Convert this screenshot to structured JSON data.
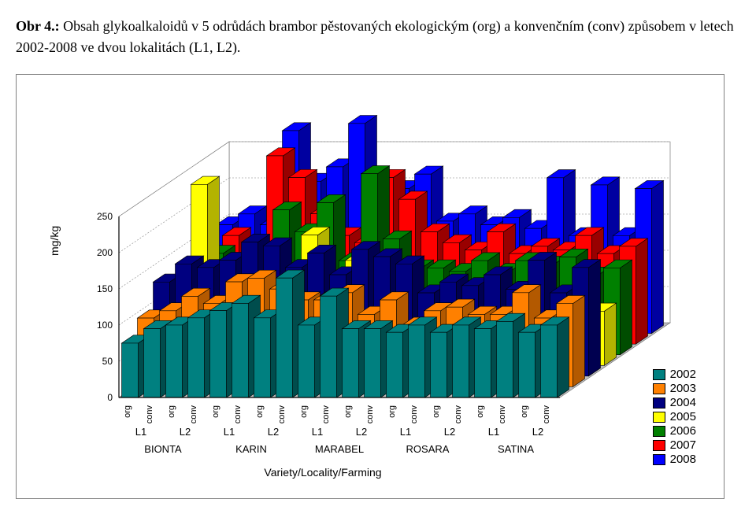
{
  "title_prefix": "Obr 4.:",
  "title_rest": " Obsah glykoalkaloidů v 5 odrůdách brambor pěstovaných ekologickým (org) a konvenčním (conv) způsobem v letech 2002-2008 ve dvou lokalitách (L1, L2).",
  "chart": {
    "type": "3d-bar",
    "ylabel": "mg/kg",
    "xlabel": "Variety/Locality/Farming",
    "ylim": [
      0,
      250
    ],
    "ytick_step": 50,
    "yticks": [
      0,
      50,
      100,
      150,
      200,
      250
    ],
    "background_color": "#ffffff",
    "floor_color": "#c0c0c0",
    "wall_color": "#ffffff",
    "grid_color": "#808080",
    "grid_dash": "2,2",
    "series_years": [
      "2002",
      "2003",
      "2004",
      "2005",
      "2006",
      "2007",
      "2008"
    ],
    "series_colors": {
      "2002": "#008080",
      "2003": "#ff8000",
      "2004": "#000080",
      "2005": "#ffff00",
      "2006": "#008000",
      "2007": "#ff0000",
      "2008": "#0000ff"
    },
    "series_dark": {
      "2002": "#004d4d",
      "2003": "#b35900",
      "2004": "#000050",
      "2005": "#b3b300",
      "2006": "#004d00",
      "2007": "#990000",
      "2008": "#0000a0"
    },
    "varieties": [
      "BIONTA",
      "KARIN",
      "MARABEL",
      "ROSARA",
      "SATINA"
    ],
    "localities": [
      "L1",
      "L2"
    ],
    "farming": [
      "org",
      "conv"
    ],
    "categories": [
      "BIONTA-L1-org",
      "BIONTA-L1-conv",
      "BIONTA-L2-org",
      "BIONTA-L2-conv",
      "KARIN-L1-org",
      "KARIN-L1-conv",
      "KARIN-L2-org",
      "KARIN-L2-conv",
      "MARABEL-L1-org",
      "MARABEL-L1-conv",
      "MARABEL-L2-org",
      "MARABEL-L2-conv",
      "ROSARA-L1-org",
      "ROSARA-L1-conv",
      "ROSARA-L2-org",
      "ROSARA-L2-conv",
      "SATINA-L1-org",
      "SATINA-L1-conv",
      "SATINA-L2-org",
      "SATINA-L2-conv"
    ],
    "values": {
      "2002": [
        75,
        95,
        100,
        110,
        120,
        130,
        110,
        165,
        100,
        140,
        95,
        95,
        90,
        100,
        90,
        100,
        95,
        105,
        90,
        100
      ],
      "2003": [
        95,
        105,
        125,
        115,
        145,
        150,
        135,
        120,
        120,
        130,
        100,
        120,
        85,
        105,
        110,
        100,
        100,
        130,
        95,
        115
      ],
      "2004": [
        130,
        155,
        150,
        160,
        185,
        180,
        150,
        170,
        140,
        175,
        165,
        155,
        115,
        130,
        125,
        140,
        120,
        160,
        115,
        150
      ],
      "2005": [
        90,
        250,
        135,
        130,
        150,
        130,
        180,
        120,
        145,
        120,
        90,
        65,
        70,
        50,
        80,
        55,
        100,
        90,
        70,
        75
      ],
      "2006": [
        95,
        140,
        130,
        135,
        200,
        170,
        210,
        130,
        250,
        160,
        120,
        120,
        115,
        130,
        115,
        130,
        125,
        135,
        110,
        120
      ],
      "2007": [
        120,
        150,
        135,
        260,
        230,
        180,
        150,
        140,
        230,
        200,
        155,
        140,
        130,
        155,
        125,
        135,
        130,
        150,
        125,
        135
      ],
      "2008": [
        150,
        165,
        150,
        280,
        210,
        230,
        290,
        195,
        200,
        220,
        155,
        165,
        150,
        160,
        145,
        215,
        135,
        205,
        135,
        200
      ]
    },
    "axis_fontsize": 12,
    "tick_fontsize": 12
  }
}
